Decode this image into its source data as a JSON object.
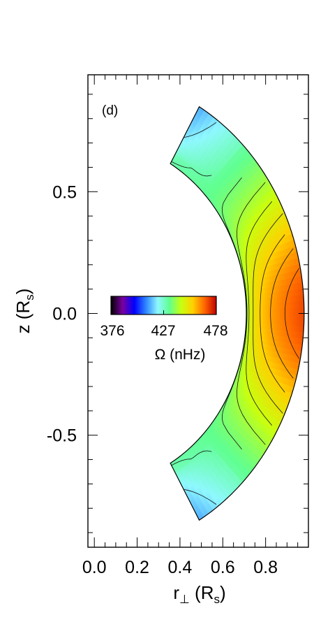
{
  "chart_data": {
    "type": "heatmap",
    "panel_label": "(d)",
    "x_axis": {
      "label_main": "r",
      "label_sub": "⊥",
      "label_rest": " (R",
      "label_rest_sub": "s",
      "label_close": ")",
      "range": [
        -0.03,
        1.0
      ],
      "ticks": [
        {
          "value": 0.0,
          "label": "0.0"
        },
        {
          "value": 0.2,
          "label": "0.2"
        },
        {
          "value": 0.4,
          "label": "0.4"
        },
        {
          "value": 0.6,
          "label": "0.6"
        },
        {
          "value": 0.8,
          "label": "0.8"
        }
      ],
      "minor_step": 0.05
    },
    "y_axis": {
      "label_main": "z (R",
      "label_sub": "s",
      "label_close": ")",
      "range": [
        -0.96,
        0.98
      ],
      "ticks": [
        {
          "value": 0.5,
          "label": "0.5"
        },
        {
          "value": 0.0,
          "label": "0.0"
        },
        {
          "value": -0.5,
          "label": "-0.5"
        }
      ],
      "minor_step": 0.1
    },
    "domain": {
      "r_inner": 0.71,
      "r_outer": 0.98,
      "lat_max_deg": 60
    },
    "colorbar": {
      "min": 376,
      "mid": 427,
      "max": 478,
      "labels": [
        "376",
        "427",
        "478"
      ],
      "title": "Ω (nHz)",
      "colormap": [
        "#000000",
        "#7a00a0",
        "#0000ff",
        "#2f87ff",
        "#8ff8ff",
        "#60ff90",
        "#c8ff10",
        "#ffd000",
        "#ff6600",
        "#c00000"
      ]
    },
    "rotation_profile": {
      "omega_equator_surface": 470,
      "omega_radiative": 432,
      "high_lat_min": 385,
      "contour_levels": [
        390,
        400,
        410,
        420,
        430,
        435,
        440,
        445,
        450,
        455,
        460,
        465
      ]
    }
  }
}
